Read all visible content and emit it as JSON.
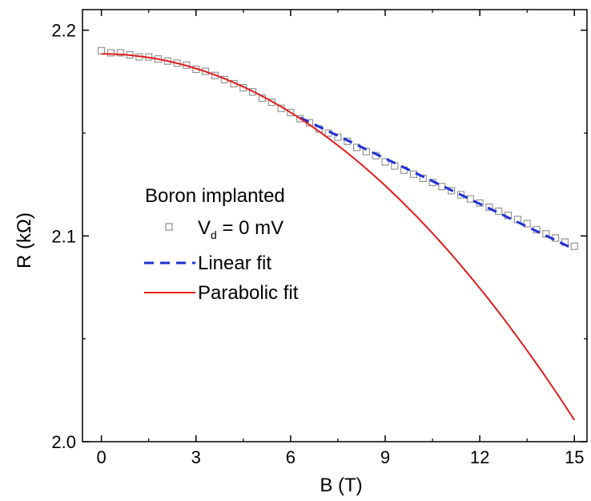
{
  "chart_data": {
    "type": "scatter",
    "xlabel": "B (T)",
    "ylabel": "R (kΩ)",
    "xlim": [
      -0.6,
      15.4
    ],
    "ylim": [
      2.0,
      2.21
    ],
    "x_ticks": [
      0,
      3,
      6,
      9,
      12,
      15
    ],
    "y_ticks": [
      2.0,
      2.1,
      2.2
    ],
    "y_tick_labels": [
      "2.0",
      "2.1",
      "2.2"
    ],
    "minor_x_step": 1.5,
    "minor_y_step": 0.05,
    "grid": false,
    "legend": {
      "placement": "center-left",
      "header": "Boron implanted",
      "data_label_main": "V",
      "data_label_sub": "d",
      "data_label_rest": " = 0 mV"
    },
    "series": [
      {
        "name": "Vd = 0 mV",
        "kind": "markers",
        "marker": "open-square",
        "color": "#8c8c8c",
        "x": [
          0.0,
          0.3,
          0.6,
          0.9,
          1.2,
          1.5,
          1.8,
          2.1,
          2.4,
          2.7,
          3.0,
          3.3,
          3.6,
          3.9,
          4.2,
          4.5,
          4.8,
          5.1,
          5.4,
          5.7,
          6.0,
          6.3,
          6.6,
          6.9,
          7.2,
          7.5,
          7.8,
          8.1,
          8.4,
          8.7,
          9.0,
          9.3,
          9.6,
          9.9,
          10.2,
          10.5,
          10.8,
          11.1,
          11.4,
          11.7,
          12.0,
          12.3,
          12.6,
          12.9,
          13.2,
          13.5,
          13.8,
          14.1,
          14.4,
          14.7,
          15.0
        ],
        "y": [
          2.19,
          2.189,
          2.189,
          2.188,
          2.187,
          2.187,
          2.186,
          2.185,
          2.184,
          2.183,
          2.181,
          2.18,
          2.178,
          2.176,
          2.174,
          2.172,
          2.17,
          2.167,
          2.165,
          2.162,
          2.16,
          2.157,
          2.155,
          2.152,
          2.15,
          2.148,
          2.146,
          2.143,
          2.141,
          2.139,
          2.136,
          2.134,
          2.132,
          2.13,
          2.128,
          2.126,
          2.124,
          2.122,
          2.12,
          2.118,
          2.116,
          2.114,
          2.112,
          2.11,
          2.108,
          2.106,
          2.103,
          2.101,
          2.099,
          2.097,
          2.095
        ]
      },
      {
        "name": "Linear fit",
        "kind": "line",
        "dash": true,
        "color": "#1f2fd6",
        "x": [
          6.3,
          15.0
        ],
        "y": [
          2.1575,
          2.0935
        ]
      },
      {
        "name": "Parabolic fit",
        "kind": "line",
        "color": "#e11c1c",
        "curve": "parabola",
        "x": [
          0.0,
          15.0
        ],
        "y": [
          2.1885,
          2.0105
        ],
        "coefficients": {
          "a": 2.1885,
          "b": 0.0,
          "c": -0.000791
        }
      }
    ]
  }
}
